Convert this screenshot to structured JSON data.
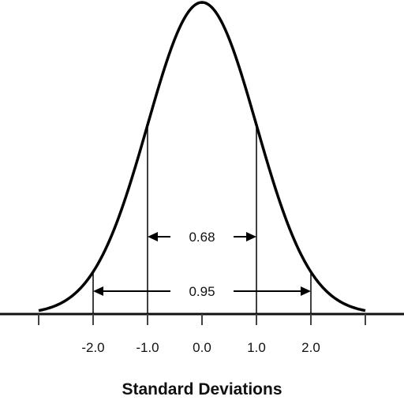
{
  "chart_data": {
    "type": "line",
    "xlabel": "Standard Deviations",
    "xlim": [
      -3.0,
      3.0
    ],
    "x_ticks": [
      -3.0,
      -2.0,
      -1.0,
      0.0,
      1.0,
      2.0,
      3.0
    ],
    "tick_labels": [
      {
        "x": -2.0,
        "label": "-2.0"
      },
      {
        "x": -1.0,
        "label": "-1.0"
      },
      {
        "x": 0.0,
        "label": "0.0"
      },
      {
        "x": 1.0,
        "label": "1.0"
      },
      {
        "x": 2.0,
        "label": "2.0"
      }
    ],
    "curve": {
      "function": "standard normal density",
      "mean": 0,
      "sd": 1
    },
    "reference_lines": [
      -2.0,
      -1.0,
      1.0,
      2.0
    ],
    "spans": [
      {
        "from": -1.0,
        "to": 1.0,
        "label": "0.68"
      },
      {
        "from": -2.0,
        "to": 2.0,
        "label": "0.95"
      }
    ],
    "grid": false,
    "legend": "none"
  }
}
